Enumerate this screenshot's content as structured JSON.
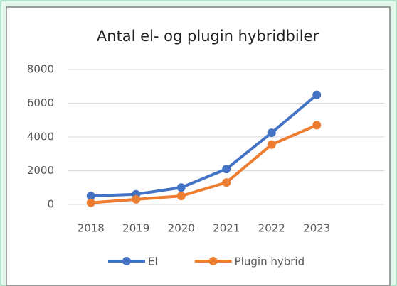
{
  "chart_data": {
    "type": "line",
    "title": "Antal el- og plugin hybridbiler",
    "categories": [
      "2018",
      "2019",
      "2020",
      "2021",
      "2022",
      "2023",
      null
    ],
    "series": [
      {
        "name": "El",
        "color": "#4472c4",
        "values": [
          500,
          600,
          1000,
          2100,
          4250,
          6500,
          null
        ]
      },
      {
        "name": "Plugin hybrid",
        "color": "#ed7d31",
        "values": [
          100,
          300,
          500,
          1300,
          3550,
          4700,
          null
        ]
      }
    ],
    "ylim": [
      0,
      8000
    ],
    "yticks": [
      0,
      2000,
      4000,
      6000,
      8000
    ],
    "grid": true,
    "legend": "bottom"
  }
}
